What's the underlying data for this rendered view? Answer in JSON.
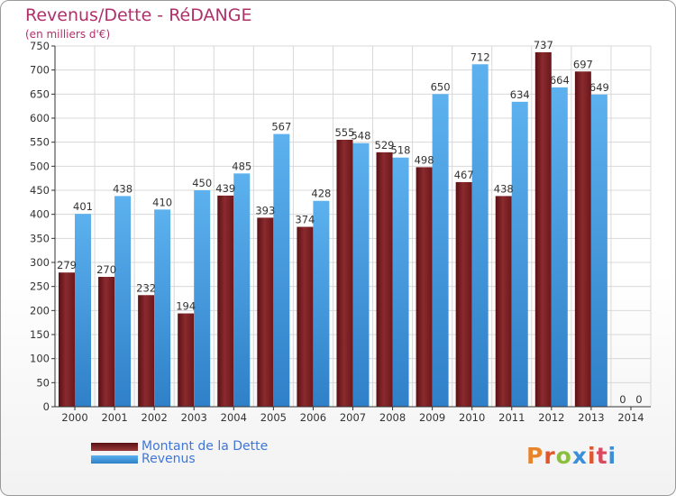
{
  "header": {
    "title": "Revenus/Dette - RéDANGE",
    "subtitle": "(en milliers d'€)"
  },
  "legend": {
    "items": [
      {
        "label": "Montant de la Dette",
        "color": "#7a1f24"
      },
      {
        "label": "Revenus",
        "color": "#4aa3e6"
      }
    ]
  },
  "logo": {
    "text": "Proxiti",
    "letter_colors": [
      "#e8842a",
      "#e0572b",
      "#8cbf3f",
      "#3b8fd8",
      "#e0572b",
      "#d94a5e",
      "#3b8fd8"
    ]
  },
  "colors": {
    "debt": "#7a1f24",
    "debt_light": "#9a3a3a",
    "revenue": "#4aa3e6",
    "revenue_dark": "#2f7fc4",
    "grid": "#d8d8d8",
    "axis": "#333333"
  },
  "chart_data": {
    "type": "bar",
    "title": "Revenus/Dette - RéDANGE",
    "subtitle": "(en milliers d'€)",
    "categories": [
      "2000",
      "2001",
      "2002",
      "2003",
      "2004",
      "2005",
      "2006",
      "2007",
      "2008",
      "2009",
      "2010",
      "2011",
      "2012",
      "2013",
      "2014"
    ],
    "series": [
      {
        "name": "Montant de la Dette",
        "values": [
          279,
          270,
          232,
          194,
          439,
          393,
          374,
          555,
          529,
          498,
          467,
          438,
          737,
          697,
          0
        ]
      },
      {
        "name": "Revenus",
        "values": [
          401,
          438,
          410,
          450,
          485,
          567,
          428,
          548,
          518,
          650,
          712,
          634,
          664,
          649,
          0
        ]
      }
    ],
    "ylim": [
      0,
      750
    ],
    "yticks": [
      0,
      50,
      100,
      150,
      200,
      250,
      300,
      350,
      400,
      450,
      500,
      550,
      600,
      650,
      700,
      750
    ],
    "grid": true,
    "legend_position": "bottom-left"
  }
}
